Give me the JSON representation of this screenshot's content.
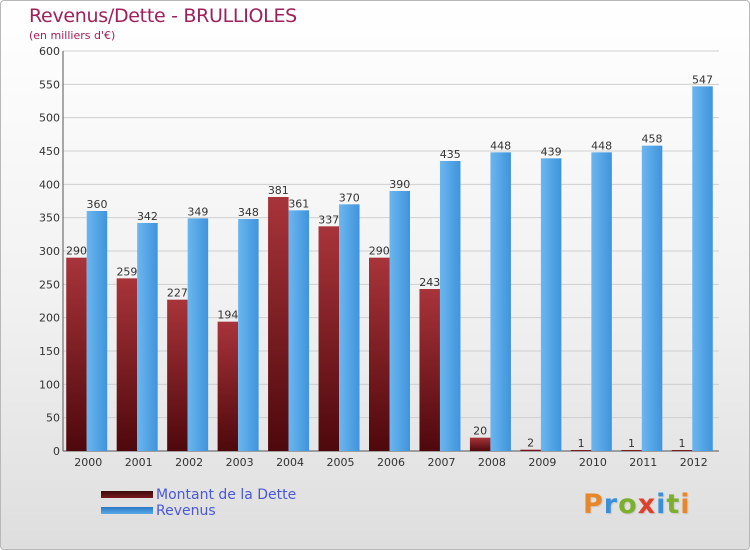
{
  "title": "Revenus/Dette - BRULLIOLES",
  "subtitle": "(en milliers d'€)",
  "logo": {
    "text": "Proxiti",
    "colors": [
      "#e8862a",
      "#3a8fd8",
      "#7cb02c",
      "#e0402a",
      "#3a8fd8",
      "#7cb02c",
      "#e8862a"
    ]
  },
  "colors": {
    "dette": "#7a1b1e",
    "revenus": "#4fa0e3",
    "title": "#a0205a",
    "legend_text": "#4a58d8",
    "grid": "#cfcfcf"
  },
  "chart_data": {
    "type": "bar",
    "categories": [
      "2000",
      "2001",
      "2002",
      "2003",
      "2004",
      "2005",
      "2006",
      "2007",
      "2008",
      "2009",
      "2010",
      "2011",
      "2012"
    ],
    "series": [
      {
        "name": "Montant de la Dette",
        "values": [
          290,
          259,
          227,
          194,
          381,
          337,
          290,
          243,
          20,
          2,
          1,
          1,
          1
        ]
      },
      {
        "name": "Revenus",
        "values": [
          360,
          342,
          349,
          348,
          361,
          370,
          390,
          435,
          448,
          439,
          448,
          458,
          547
        ]
      }
    ],
    "ylim": [
      0,
      600
    ],
    "yticks": [
      0,
      50,
      100,
      150,
      200,
      250,
      300,
      350,
      400,
      450,
      500,
      550,
      600
    ],
    "grid": true,
    "legend": "bottom-left"
  }
}
